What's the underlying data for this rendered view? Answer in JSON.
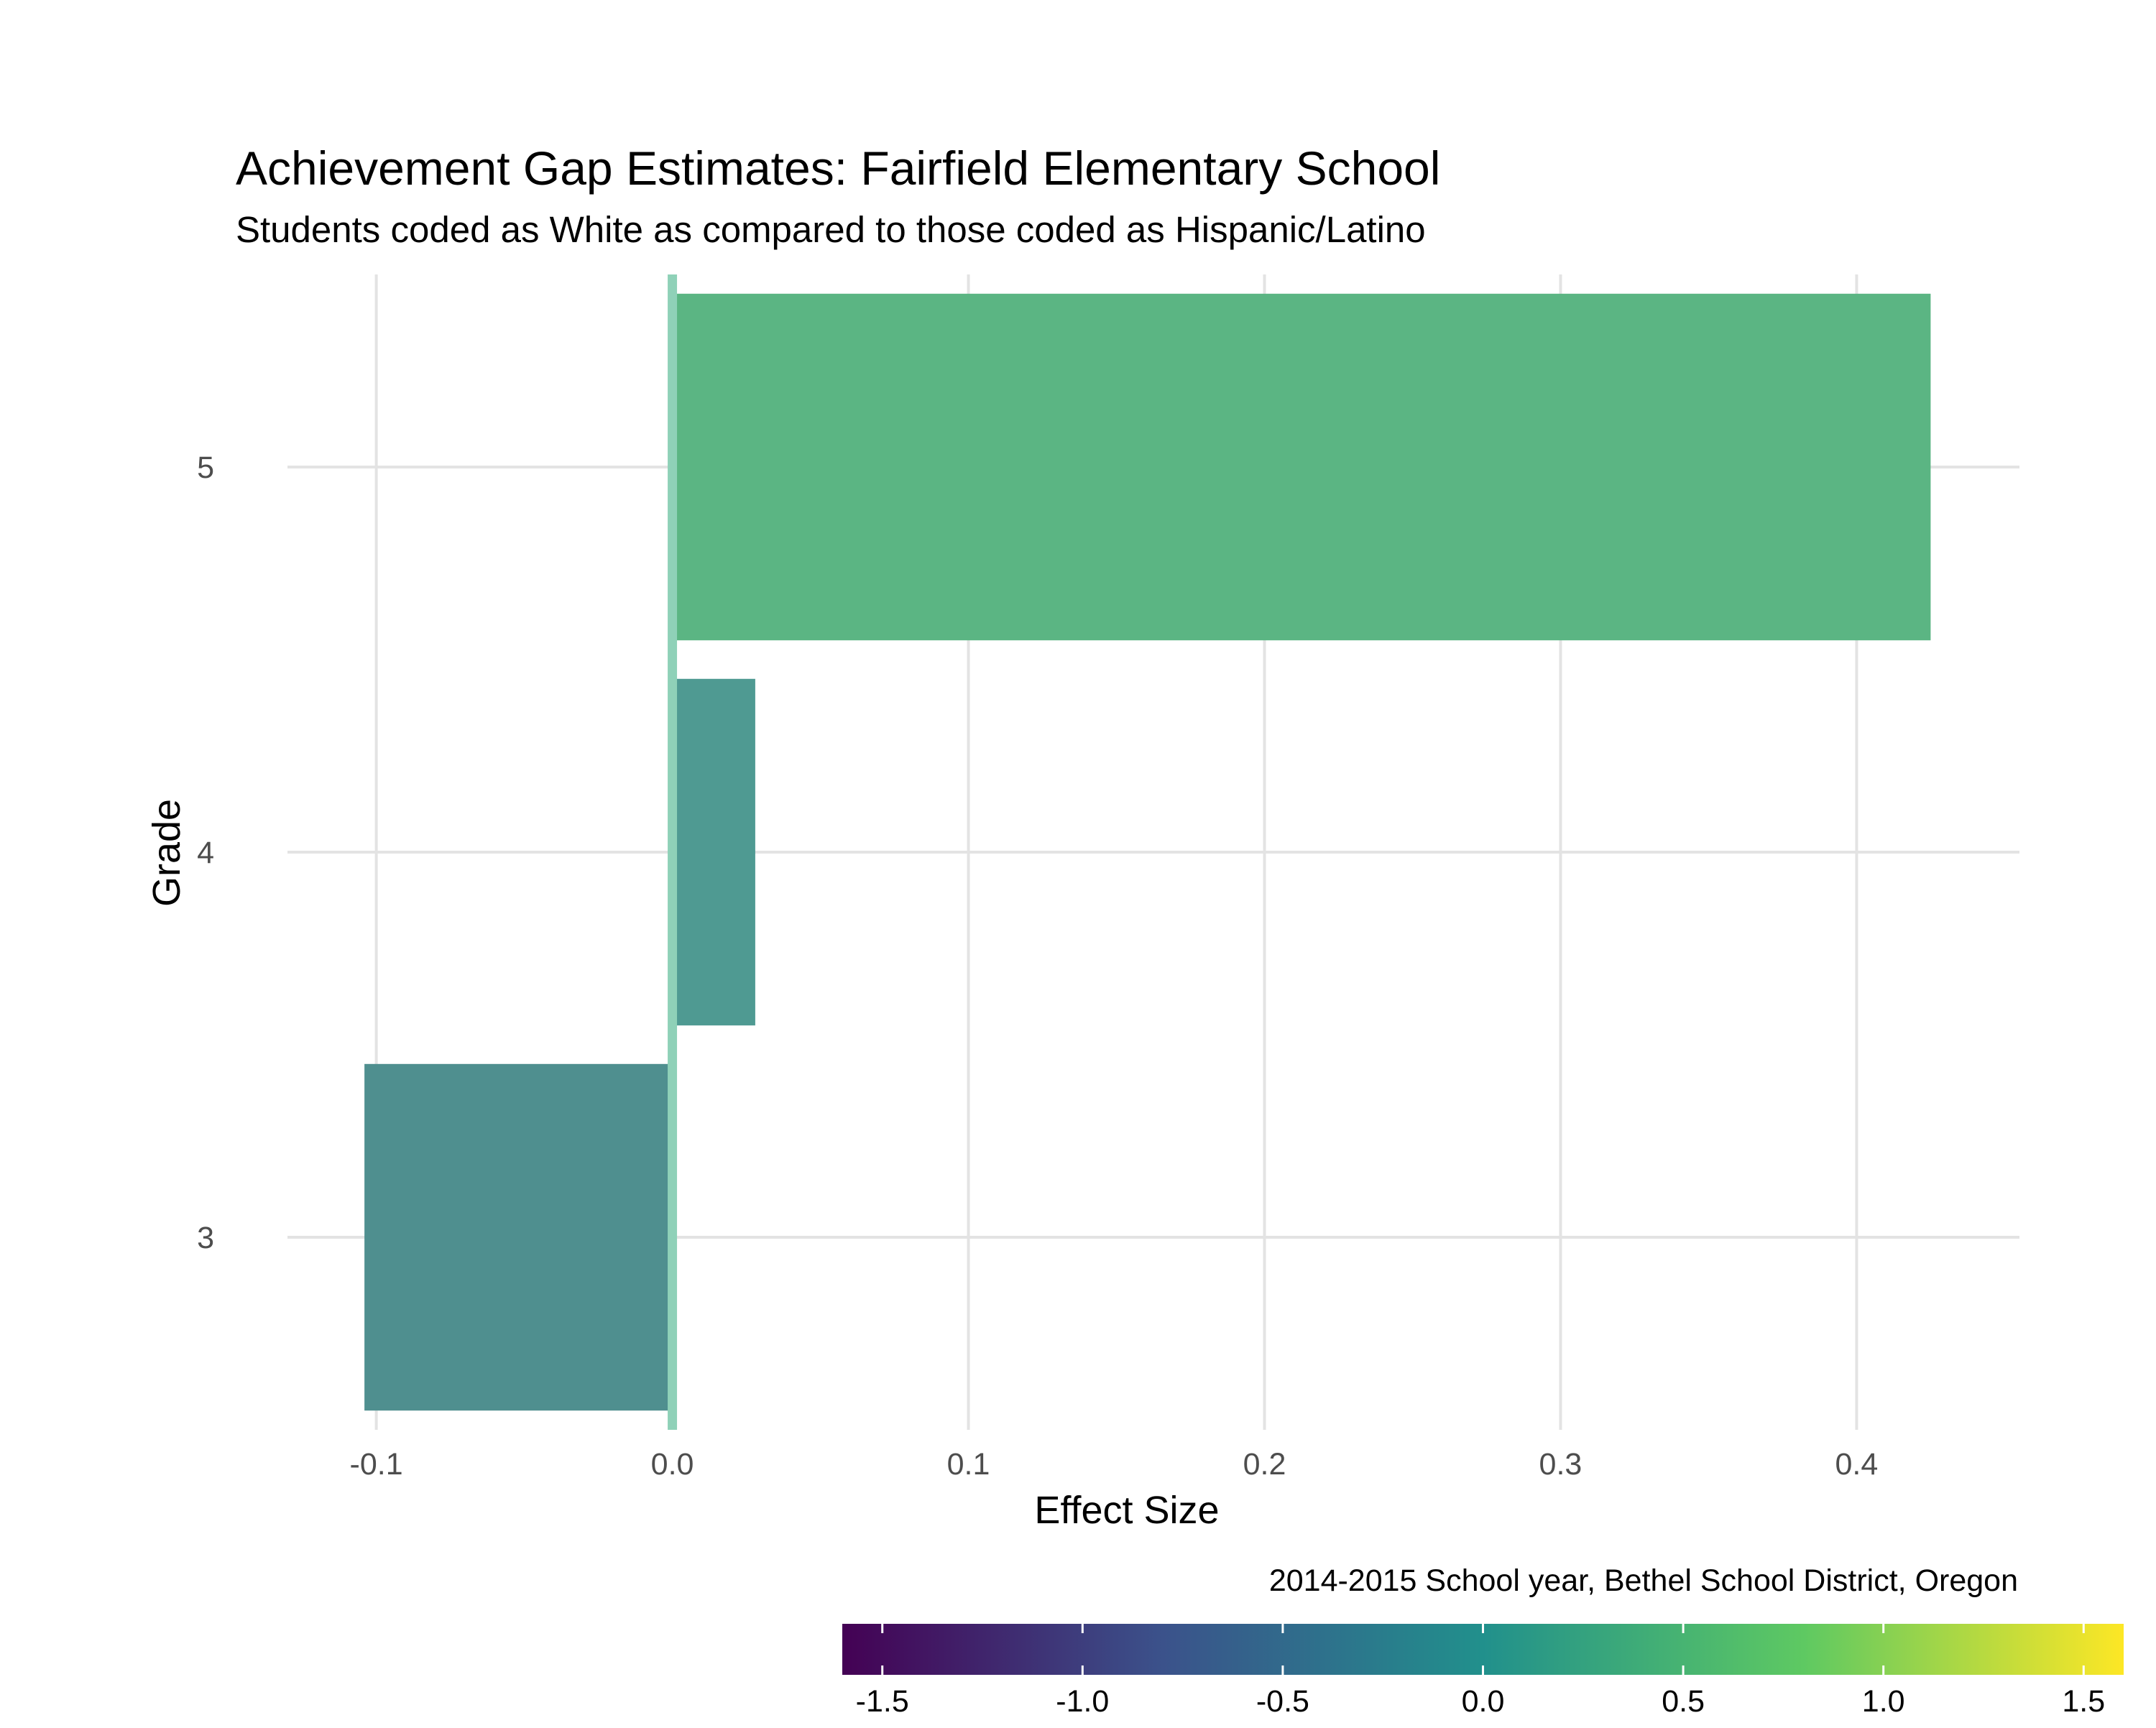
{
  "chart_data": {
    "type": "bar",
    "orientation": "horizontal",
    "title": "Achievement Gap Estimates: Fairfield Elementary School",
    "subtitle": "Students coded as White as compared to those coded as Hispanic/Latino",
    "xlabel": "Effect Size",
    "ylabel": "Grade",
    "caption": "2014-2015 School year, Bethel School District, Oregon",
    "categories": [
      "3",
      "4",
      "5"
    ],
    "values": [
      -0.104,
      0.028,
      0.425
    ],
    "bar_colors": [
      "#4f8f8f",
      "#4f9a92",
      "#5bb583"
    ],
    "reference_line": {
      "x": 0.0,
      "color": "#8fd1b8"
    },
    "xlim": [
      -0.13,
      0.455
    ],
    "xticks": [
      -0.1,
      0.0,
      0.1,
      0.2,
      0.3,
      0.4
    ],
    "xtick_labels": [
      "-0.1",
      "0.0",
      "0.1",
      "0.2",
      "0.3",
      "0.4"
    ],
    "grid": true,
    "colorbar": {
      "range": [
        -1.6,
        1.6
      ],
      "ticks": [
        -1.5,
        -1.0,
        -0.5,
        0.0,
        0.5,
        1.0,
        1.5
      ],
      "tick_labels": [
        "-1.5",
        "-1.0",
        "-0.5",
        "0.0",
        "0.5",
        "1.0",
        "1.5"
      ],
      "colormap": [
        "#440154",
        "#3b528b",
        "#21908c",
        "#5ec962",
        "#fde725"
      ],
      "placement": "bottom-right"
    }
  }
}
